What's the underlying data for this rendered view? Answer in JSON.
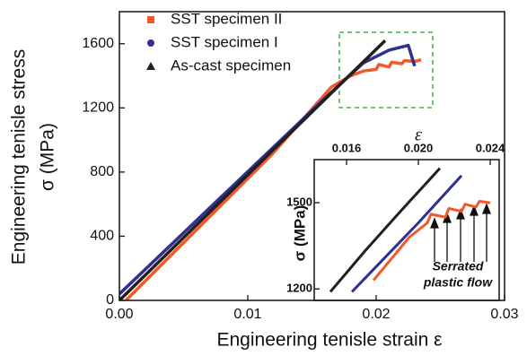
{
  "chart_data": [
    {
      "type": "line",
      "x_label": "Engineering tenisle strain ε",
      "y_label": [
        "Engineering tenisle stress",
        "σ (MPa)"
      ],
      "xlim": [
        0,
        0.03
      ],
      "xticks": [
        {
          "value": 0,
          "label": "0.00"
        },
        0.01,
        0.02,
        0.03
      ],
      "ylim": [
        0,
        1800
      ],
      "yticks": [
        0,
        400,
        800,
        1200,
        1600
      ],
      "legend": "upper left",
      "series": [
        {
          "name": "SST specimen II",
          "color": "#f05a28",
          "marker": "square",
          "x": [
            0.0005,
            0.004,
            0.008,
            0.012,
            0.0165,
            0.018,
            0.019,
            0.02,
            0.0202,
            0.021,
            0.0212,
            0.022,
            0.0222,
            0.023,
            0.0235
          ],
          "y": [
            0,
            280,
            600,
            920,
            1330,
            1400,
            1430,
            1440,
            1470,
            1455,
            1485,
            1475,
            1495,
            1490,
            1500
          ]
        },
        {
          "name": "SST specimen I",
          "color": "#2e3192",
          "marker": "circle",
          "x": [
            0,
            0.004,
            0.008,
            0.012,
            0.016,
            0.019,
            0.021,
            0.0225,
            0.023
          ],
          "y": [
            40,
            345,
            650,
            955,
            1260,
            1480,
            1560,
            1590,
            1460
          ]
        },
        {
          "name": "As-cast specimen",
          "color": "#231f20",
          "marker": "triangle",
          "x": [
            0,
            0.004,
            0.008,
            0.012,
            0.016,
            0.0207
          ],
          "y": [
            0,
            313,
            626,
            940,
            1253,
            1620
          ]
        }
      ]
    },
    {
      "type": "line",
      "x_label": "ε",
      "y_label": [
        "σ (MPa)"
      ],
      "xlim": [
        0.0142,
        0.0245
      ],
      "xticks": [
        0.016,
        {
          "value": 0.02,
          "label": "0.020"
        },
        0.024
      ],
      "ylim": [
        1160,
        1650
      ],
      "yticks": [
        1200,
        1500
      ],
      "annotations": [
        "Serrated",
        "plastic flow"
      ],
      "series": [
        {
          "color": "#f05a28",
          "x": [
            0.0175,
            0.0195,
            0.0205,
            0.0207,
            0.0215,
            0.0217,
            0.0224,
            0.0226,
            0.0232,
            0.0234,
            0.024
          ],
          "y": [
            1230,
            1380,
            1430,
            1460,
            1450,
            1480,
            1470,
            1495,
            1485,
            1505,
            1500
          ]
        },
        {
          "color": "#2e3192",
          "x": [
            0.0163,
            0.018,
            0.02,
            0.0224
          ],
          "y": [
            1190,
            1300,
            1430,
            1594
          ]
        },
        {
          "color": "#231f20",
          "x": [
            0.0151,
            0.017,
            0.019,
            0.0212
          ],
          "y": [
            1190,
            1330,
            1470,
            1620
          ]
        }
      ]
    }
  ]
}
